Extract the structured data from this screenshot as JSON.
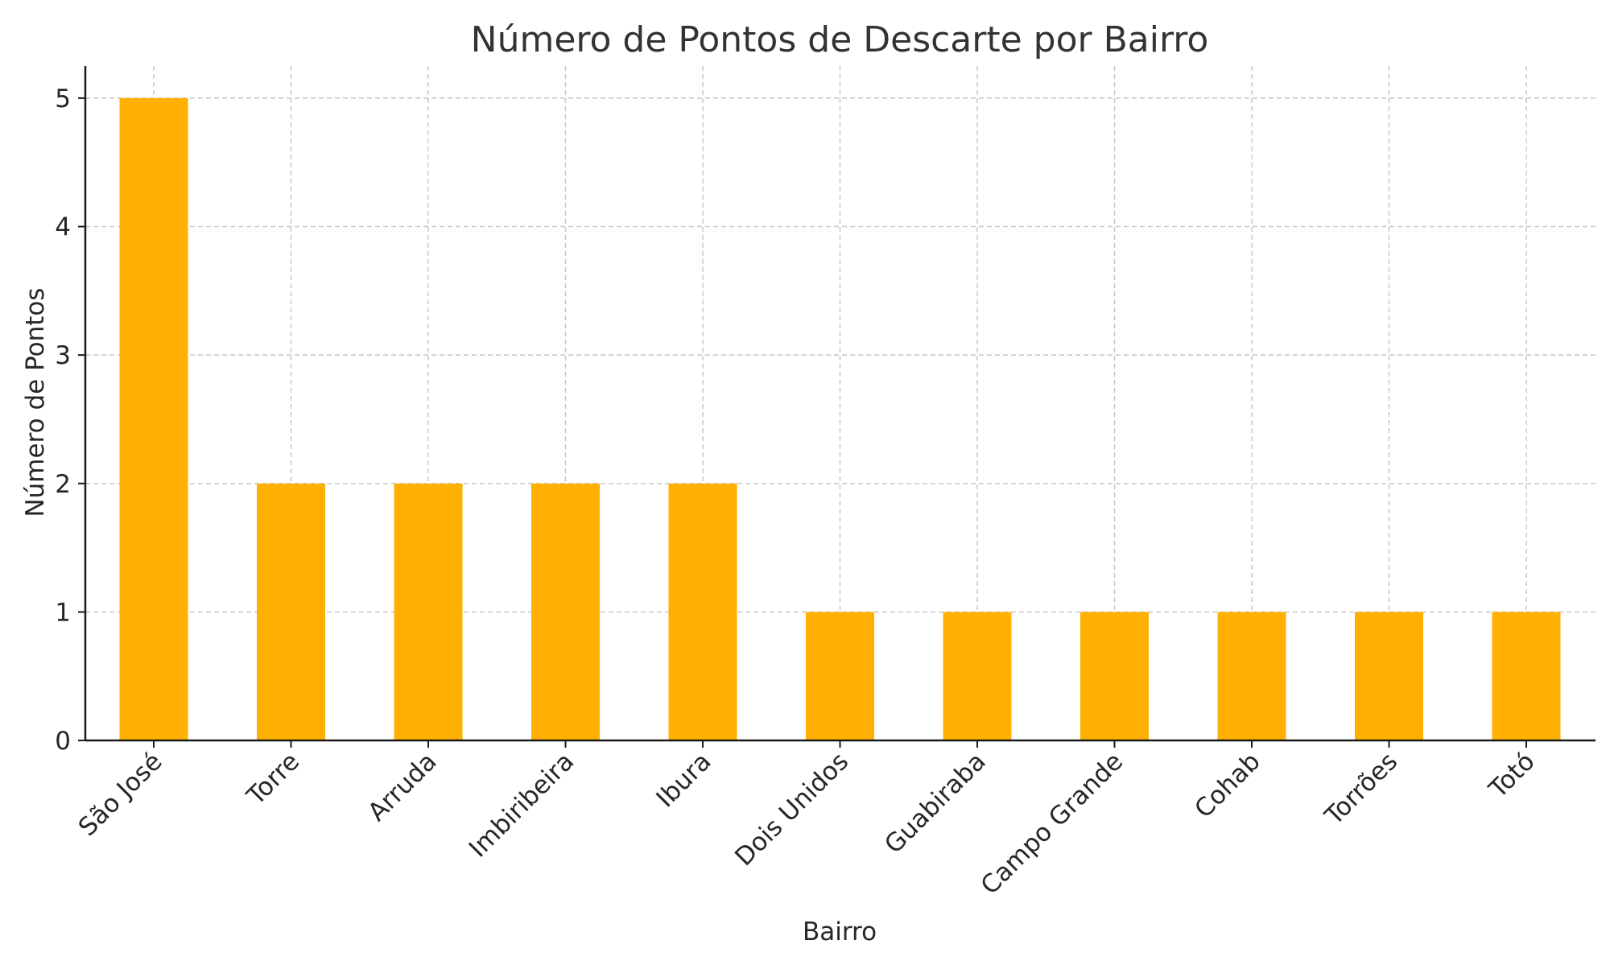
{
  "chart_data": {
    "type": "bar",
    "title": "Número de Pontos de Descarte por Bairro",
    "xlabel": "Bairro",
    "ylabel": "Número de Pontos",
    "categories": [
      "São José",
      "Torre",
      "Arruda",
      "Imbiribeira",
      "Ibura",
      "Dois Unidos",
      "Guabiraba",
      "Campo Grande",
      "Cohab",
      "Torrões",
      "Totó"
    ],
    "values": [
      5,
      2,
      2,
      2,
      2,
      1,
      1,
      1,
      1,
      1,
      1
    ],
    "ylim": [
      0,
      5.25
    ],
    "yticks": [
      0,
      1,
      2,
      3,
      4,
      5
    ],
    "bar_color": "#FFB000",
    "grid": true
  }
}
